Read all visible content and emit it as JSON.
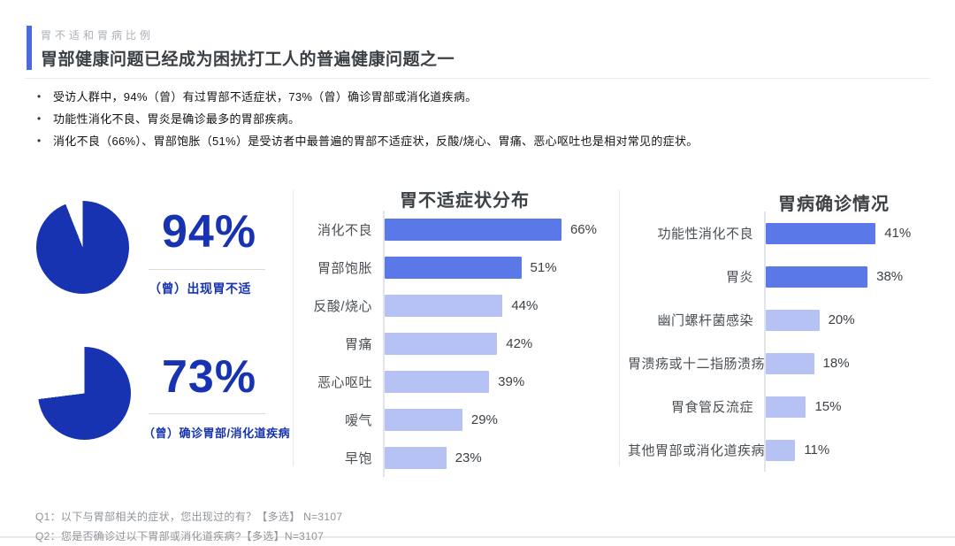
{
  "header": {
    "eyebrow": "胃不适和胃病比例",
    "title": "胃部健康问题已经成为困扰打工人的普遍健康问题之一"
  },
  "bullets": [
    "受访人群中，94%（曾）有过胃部不适症状，73%（曾）确诊胃部或消化道疾病。",
    "功能性消化不良、胃炎是确诊最多的胃部疾病。",
    "消化不良（66%）、胃部饱胀（51%）是受访者中最普遍的胃部不适症状，反酸/烧心、胃痛、恶心呕吐也是相对常见的症状。"
  ],
  "stats": [
    {
      "value": "94%",
      "pct": 94,
      "label": "（曾）出现胃不适"
    },
    {
      "value": "73%",
      "pct": 73,
      "label": "（曾）确诊胃部/消化道疾病"
    }
  ],
  "chart_data": [
    {
      "type": "bar",
      "orientation": "horizontal",
      "title": "胃不适症状分布",
      "categories": [
        "消化不良",
        "胃部饱胀",
        "反酸/烧心",
        "胃痛",
        "恶心呕吐",
        "嗳气",
        "早饱"
      ],
      "values": [
        66,
        51,
        44,
        42,
        39,
        29,
        23
      ],
      "value_suffix": "%",
      "strong_count": 2,
      "xlim": [
        0,
        100
      ],
      "grid": false,
      "legend": "none"
    },
    {
      "type": "bar",
      "orientation": "horizontal",
      "title": "胃病确诊情况",
      "categories": [
        "功能性消化不良",
        "胃炎",
        "幽门螺杆菌感染",
        "胃溃疡或十二指肠溃疡",
        "胃食管反流症",
        "其他胃部或消化道疾病"
      ],
      "values": [
        41,
        38,
        20,
        18,
        15,
        11
      ],
      "value_suffix": "%",
      "strong_count": 2,
      "xlim": [
        0,
        100
      ],
      "grid": false,
      "legend": "none"
    }
  ],
  "footnotes": [
    "Q1：以下与胃部相关的症状，您出现过的有？【多选】 N=3107",
    "Q2：您是否确诊过以下胃部或消化道疾病?【多选】N=3107"
  ],
  "colors": {
    "accent": "#4a6bdd",
    "deep_blue": "#1733b2",
    "bar_strong": "#5b78e8",
    "bar_light": "#b6c1f4"
  }
}
